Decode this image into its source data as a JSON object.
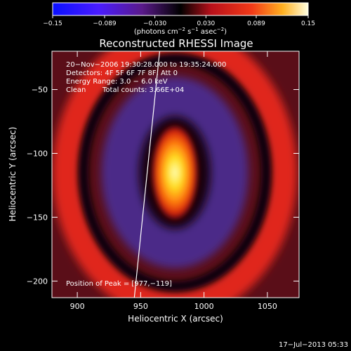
{
  "chart_data": {
    "type": "heatmap",
    "title": "Reconstructed RHESSI Image",
    "xlabel": "Heliocentric X (arcsec)",
    "ylabel": "Heliocentric Y (arcsec)",
    "xlim": [
      880,
      1075
    ],
    "ylim": [
      -213,
      -20
    ],
    "x_ticks": [
      900,
      950,
      1000,
      1050
    ],
    "x_tick_labels": [
      "900",
      "950",
      "1000",
      "1050"
    ],
    "y_ticks": [
      -50,
      -100,
      -150,
      -200
    ],
    "y_tick_labels": [
      "−50",
      "−100",
      "−150",
      "−200"
    ],
    "colorbar": {
      "colormap": "blue-purple-black-red-yellow-white",
      "range": [
        -0.15,
        0.15
      ],
      "ticks": [
        -0.15,
        -0.089,
        -0.03,
        0.03,
        0.089,
        0.15
      ],
      "tick_labels": [
        "−0.15",
        "−0.089",
        "−0.030",
        "0.030",
        "0.089",
        "0.15"
      ],
      "unit_main": "(photons cm",
      "unit_exp1": "−2",
      "unit_mid": " s",
      "unit_exp2": "−1",
      "unit_mid2": " asec",
      "unit_exp3": "−2",
      "unit_end": ")"
    },
    "annotations": {
      "time_range": "20−Nov−2006 19:30:28.000 to 19:35:24.000",
      "detectors": "Detectors: 4F 5F 6F 7F 8F, Att 0",
      "energy_range": "Energy Range: 3.0 − 6.0 keV",
      "clean_label": "Clean",
      "total_counts": "Total counts: 3.66E+04",
      "peak_position": "Position of Peak = [977,−119]"
    },
    "peak": {
      "x": 977,
      "y": -119
    },
    "limb_line": {
      "x_top": 965,
      "y_top": -20,
      "x_bottom": 945,
      "y_bottom": -213
    },
    "features": [
      {
        "name": "core",
        "cx": 977,
        "cy": -115,
        "rx": 12,
        "ry": 26,
        "value": 0.15
      },
      {
        "name": "ring",
        "cx": 977,
        "cy": -115,
        "rx": 58,
        "ry": 75,
        "value": -0.07
      },
      {
        "name": "outer",
        "cx": 977,
        "cy": -115,
        "rx": 86,
        "ry": 104,
        "value": 0.06
      }
    ],
    "timestamp": "17−Jul−2013 05:33"
  }
}
